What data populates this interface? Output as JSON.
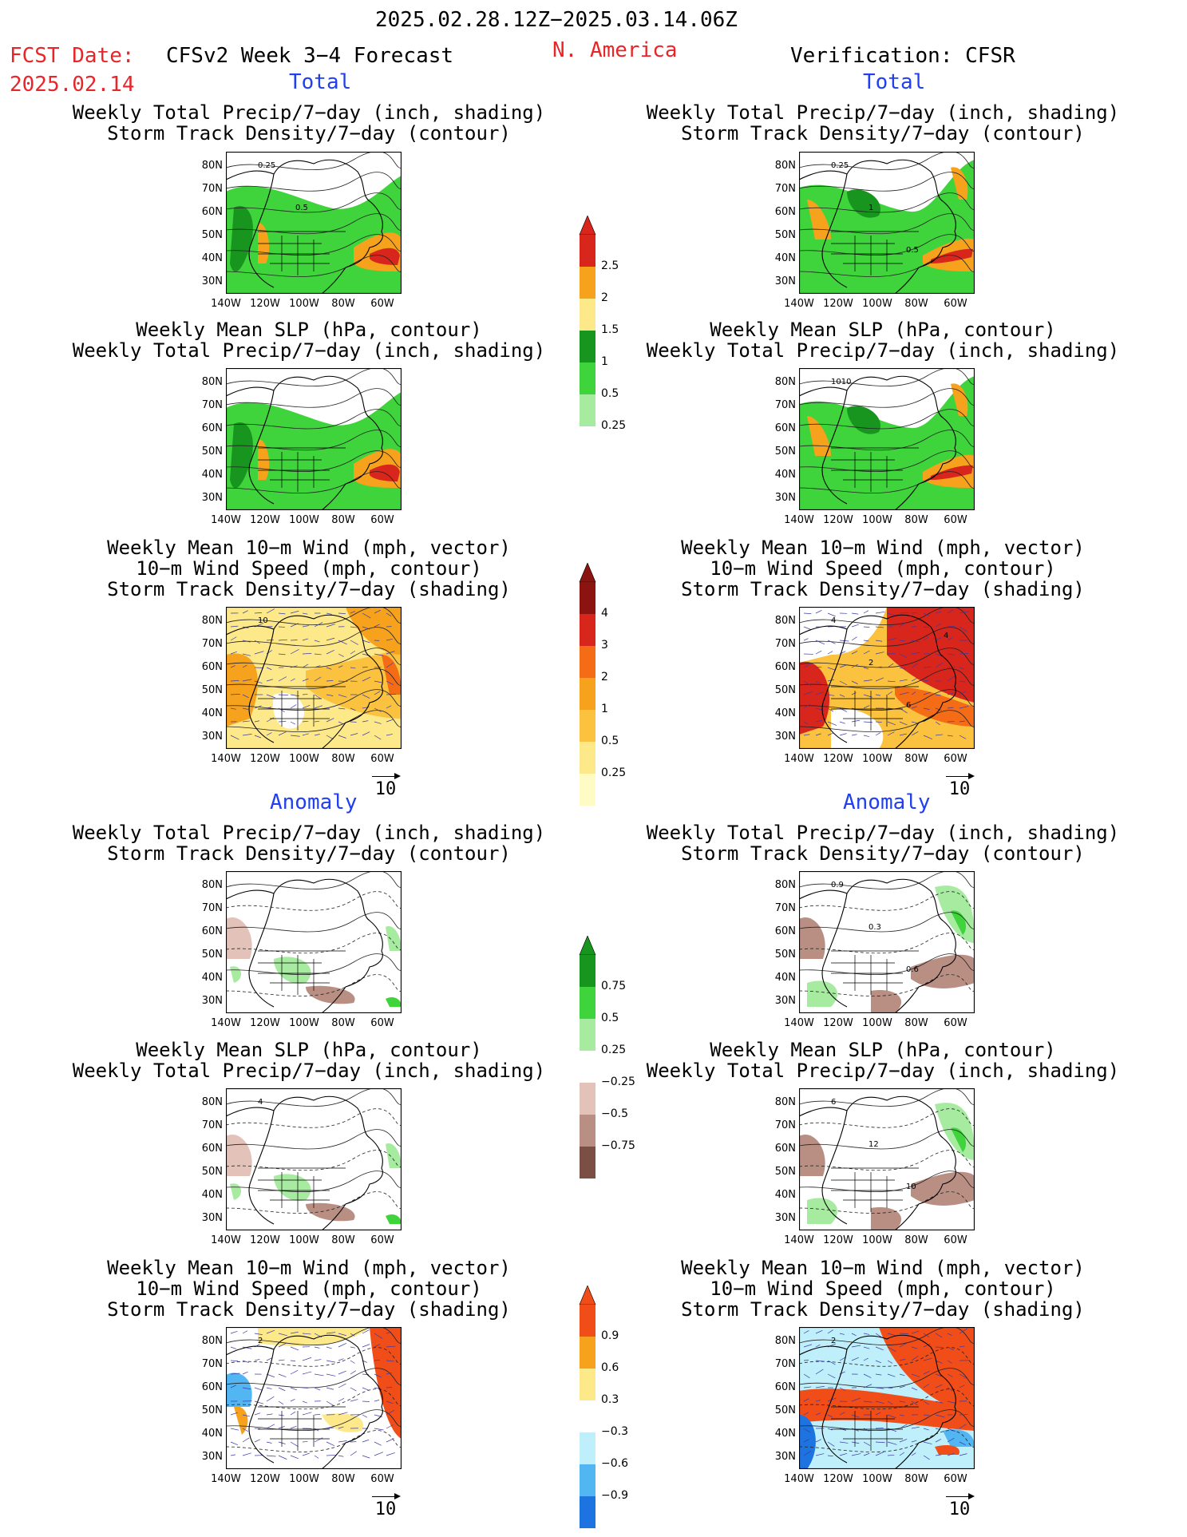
{
  "header": {
    "period": "2025.02.28.12Z−2025.03.14.06Z",
    "fcst_label": "FCST Date:",
    "fcst_date": "2025.02.14",
    "model": "CFSv2 Week 3−4 Forecast",
    "region": "N. America",
    "verification": "Verification: CFSR"
  },
  "sections": {
    "total": "Total",
    "anomaly": "Anomaly"
  },
  "titles": {
    "precip_track": [
      "Weekly Total Precip/7−day (inch, shading)",
      "Storm Track Density/7−day (contour)"
    ],
    "slp_precip": [
      "Weekly Mean SLP (hPa, contour)",
      "Weekly Total Precip/7−day (inch, shading)"
    ],
    "wind_track": [
      "Weekly Mean 10−m Wind (mph, vector)",
      "10−m Wind Speed (mph, contour)",
      "Storm Track Density/7−day (shading)"
    ]
  },
  "axes": {
    "lat_labels": [
      "80N",
      "70N",
      "60N",
      "50N",
      "40N",
      "30N"
    ],
    "lon_labels": [
      "140W",
      "120W",
      "100W",
      "80W",
      "60W"
    ]
  },
  "wind_reference": "10",
  "colorbars": {
    "precip_total": {
      "labels": [
        "2.5",
        "2",
        "1.5",
        "1",
        "0.5",
        "0.25"
      ],
      "colors": [
        "#d8261c",
        "#f6a21c",
        "#fde98a",
        "#18951f",
        "#3fd33c",
        "#a6eb9f"
      ]
    },
    "track_total": {
      "labels": [
        "4",
        "3",
        "2",
        "1",
        "0.5",
        "0.25"
      ],
      "colors": [
        "#8c1410",
        "#d8261c",
        "#f56c17",
        "#f6a21c",
        "#fac23f",
        "#fde98a",
        "#fffbc5"
      ]
    },
    "precip_anom": {
      "labels": [
        "0.75",
        "0.5",
        "0.25",
        "−0.25",
        "−0.5",
        "−0.75"
      ],
      "colors": [
        "#18951f",
        "#3fd33c",
        "#a6eb9f",
        "#ffffff",
        "#e3c2b9",
        "#b98f84",
        "#7b4f44"
      ]
    },
    "track_anom": {
      "labels": [
        "0.9",
        "0.6",
        "0.3",
        "−0.3",
        "−0.6",
        "−0.9"
      ],
      "colors": [
        "#f04d18",
        "#f6a21c",
        "#fde98a",
        "#ffffff",
        "#bfeffb",
        "#52b6f2",
        "#1d74e0"
      ]
    }
  },
  "panels": [
    {
      "id": "p1",
      "variant": "precip_total",
      "contour_labels": [
        "0.25",
        "0.5"
      ]
    },
    {
      "id": "p2",
      "variant": "precip_total_v",
      "contour_labels": [
        "0.25",
        "1",
        "0.5"
      ]
    },
    {
      "id": "p3",
      "variant": "slp_total",
      "contour_labels": []
    },
    {
      "id": "p4",
      "variant": "slp_total_v",
      "contour_labels": [
        "1010"
      ]
    },
    {
      "id": "p5",
      "variant": "wind_total",
      "contour_labels": [
        "10"
      ]
    },
    {
      "id": "p6",
      "variant": "wind_total_v",
      "contour_labels": [
        "4",
        "2",
        "6",
        "4"
      ]
    },
    {
      "id": "p7",
      "variant": "precip_anom",
      "contour_labels": []
    },
    {
      "id": "p8",
      "variant": "precip_anom_v",
      "contour_labels": [
        "0.9",
        "0.3",
        "0.6"
      ]
    },
    {
      "id": "p9",
      "variant": "slp_anom",
      "contour_labels": [
        "4"
      ]
    },
    {
      "id": "p10",
      "variant": "slp_anom_v",
      "contour_labels": [
        "6",
        "12",
        "10"
      ]
    },
    {
      "id": "p11",
      "variant": "wind_anom",
      "contour_labels": [
        "2"
      ]
    },
    {
      "id": "p12",
      "variant": "wind_anom_v",
      "contour_labels": [
        "2"
      ]
    }
  ]
}
